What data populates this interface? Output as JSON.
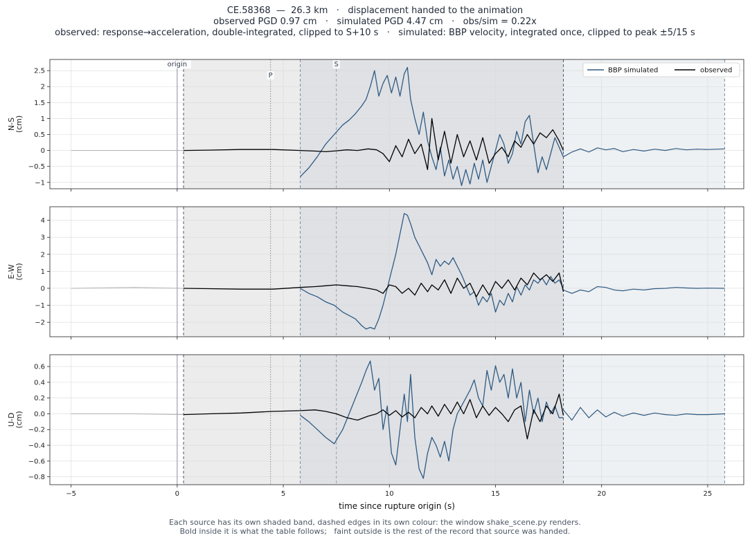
{
  "header": {
    "line1": "CE.58368  —  26.3 km   ·   displacement handed to the animation",
    "line2": "observed PGD 0.97 cm   ·   simulated PGD 4.47 cm   ·   obs/sim = 0.22x",
    "line3": "observed: response→acceleration, double-integrated, clipped to S+10 s   ·   simulated: BBP velocity, integrated once, clipped to peak ±5/15 s"
  },
  "footer": {
    "line1": "Each source has its own shaded band, dashed edges in its own colour: the window shake_scene.py renders.",
    "line2": "Bold inside it is what the table follows;   faint outside is the rest of the record that source was handed."
  },
  "colors": {
    "simulated": "#2f5a82",
    "observed": "#000000",
    "faint": "#b0b0b0",
    "obs_band": "#ececec",
    "sim_band": "#eef1f4",
    "overlap_band": "#dfe1e5"
  },
  "chart_data": {
    "type": "line",
    "xlabel": "time since rupture origin (s)",
    "xlim": [
      -6,
      26.7
    ],
    "xticks": [
      -5,
      0,
      5,
      10,
      15,
      20,
      25
    ],
    "markers": [
      {
        "label": "origin",
        "t": 0,
        "style": "solid"
      },
      {
        "label": "P",
        "t": 4.4,
        "style": "dotted"
      },
      {
        "label": "S",
        "t": 7.5,
        "style": "dashed"
      }
    ],
    "observed_window": [
      0.3,
      18.2
    ],
    "simulated_window": [
      5.8,
      25.8
    ],
    "legend": {
      "position": "top-right",
      "entries": [
        "BBP simulated",
        "observed"
      ]
    },
    "panels": [
      {
        "ylabel": "N-S\n(cm)",
        "ylim": [
          -1.2,
          2.85
        ],
        "yticks": [
          -1.0,
          -0.5,
          0.0,
          0.5,
          1.0,
          1.5,
          2.0,
          2.5
        ],
        "simulated": {
          "name": "BBP simulated",
          "x": [
            5.8,
            6.2,
            6.6,
            7.0,
            7.4,
            7.8,
            8.1,
            8.4,
            8.7,
            8.9,
            9.1,
            9.3,
            9.5,
            9.7,
            9.9,
            10.1,
            10.3,
            10.5,
            10.7,
            10.85,
            11.0,
            11.2,
            11.4,
            11.6,
            11.8,
            12.0,
            12.2,
            12.4,
            12.6,
            12.8,
            13.0,
            13.2,
            13.4,
            13.6,
            13.8,
            14.0,
            14.2,
            14.4,
            14.6,
            14.8,
            15.0,
            15.2,
            15.4,
            15.6,
            15.8,
            16.0,
            16.2,
            16.4,
            16.6,
            16.8,
            17.0,
            17.2,
            17.4,
            17.6,
            17.8,
            18.0,
            18.2
          ],
          "y": [
            -0.82,
            -0.55,
            -0.2,
            0.2,
            0.5,
            0.8,
            0.95,
            1.15,
            1.4,
            1.6,
            2.0,
            2.5,
            1.7,
            2.1,
            2.35,
            1.8,
            2.3,
            1.7,
            2.4,
            2.6,
            1.6,
            1.0,
            0.5,
            1.2,
            0.3,
            -0.2,
            -0.6,
            0.1,
            -0.8,
            -0.3,
            -0.9,
            -0.5,
            -1.1,
            -0.6,
            -1.05,
            -0.4,
            -0.9,
            -0.3,
            -1.0,
            -0.5,
            0.0,
            0.5,
            0.2,
            -0.4,
            -0.1,
            0.6,
            0.2,
            0.9,
            1.1,
            0.2,
            -0.7,
            -0.2,
            -0.6,
            -0.1,
            0.4,
            0.1,
            -0.2
          ]
        },
        "simulated_tail": {
          "x": [
            18.2,
            18.6,
            19.0,
            19.4,
            19.8,
            20.2,
            20.6,
            21.0,
            21.5,
            22.0,
            22.5,
            23.0,
            23.5,
            24.0,
            24.5,
            25.0,
            25.8
          ],
          "y": [
            -0.2,
            -0.05,
            0.05,
            -0.05,
            0.08,
            0.02,
            0.06,
            -0.04,
            0.03,
            -0.02,
            0.04,
            0.0,
            0.06,
            0.02,
            0.04,
            0.03,
            0.05
          ]
        },
        "observed": {
          "name": "observed",
          "x": [
            0.3,
            1.5,
            3.0,
            4.5,
            5.8,
            6.5,
            7.0,
            7.5,
            8.0,
            8.5,
            9.0,
            9.4,
            9.7,
            10.0,
            10.3,
            10.6,
            10.9,
            11.2,
            11.5,
            11.8,
            12.0,
            12.3,
            12.6,
            12.9,
            13.2,
            13.5,
            13.8,
            14.1,
            14.4,
            14.7,
            15.0,
            15.3,
            15.6,
            15.9,
            16.2,
            16.5,
            16.8,
            17.1,
            17.4,
            17.7,
            18.0,
            18.2
          ],
          "y": [
            0.0,
            0.01,
            0.03,
            0.03,
            0.0,
            -0.02,
            -0.04,
            -0.01,
            0.02,
            0.0,
            0.05,
            0.02,
            -0.1,
            -0.35,
            0.15,
            -0.2,
            0.35,
            -0.1,
            0.2,
            -0.6,
            1.0,
            -0.3,
            0.6,
            -0.4,
            0.5,
            -0.2,
            0.3,
            -0.3,
            0.4,
            -0.4,
            -0.1,
            0.1,
            -0.2,
            0.3,
            0.1,
            0.5,
            0.2,
            0.55,
            0.4,
            0.65,
            0.3,
            0.0
          ]
        },
        "observed_pre": {
          "x": [
            -5,
            -2,
            0.3
          ],
          "y": [
            0.0,
            0.0,
            0.0
          ]
        }
      },
      {
        "ylabel": "E-W\n(cm)",
        "ylim": [
          -2.85,
          4.8
        ],
        "yticks": [
          -2,
          -1,
          0,
          1,
          2,
          3,
          4
        ],
        "simulated": {
          "name": "BBP simulated",
          "x": [
            5.8,
            6.2,
            6.6,
            7.0,
            7.4,
            7.8,
            8.1,
            8.4,
            8.7,
            8.9,
            9.1,
            9.3,
            9.5,
            9.7,
            9.9,
            10.1,
            10.3,
            10.5,
            10.7,
            10.85,
            11.0,
            11.2,
            11.4,
            11.6,
            11.8,
            12.0,
            12.2,
            12.4,
            12.6,
            12.8,
            13.0,
            13.2,
            13.4,
            13.6,
            13.8,
            14.0,
            14.2,
            14.4,
            14.6,
            14.8,
            15.0,
            15.2,
            15.4,
            15.6,
            15.8,
            16.0,
            16.2,
            16.4,
            16.6,
            16.8,
            17.0,
            17.2,
            17.4,
            17.6,
            17.8,
            18.0,
            18.2
          ],
          "y": [
            0.0,
            -0.3,
            -0.5,
            -0.8,
            -1.0,
            -1.4,
            -1.6,
            -1.8,
            -2.2,
            -2.4,
            -2.3,
            -2.4,
            -1.8,
            -1.0,
            0.0,
            1.0,
            2.0,
            3.2,
            4.4,
            4.3,
            3.8,
            3.0,
            2.5,
            2.0,
            1.5,
            0.8,
            1.7,
            1.3,
            1.6,
            1.4,
            1.8,
            1.3,
            0.8,
            0.2,
            -0.4,
            -0.2,
            -1.0,
            -0.5,
            -0.8,
            -0.3,
            -1.4,
            -0.7,
            -1.0,
            -0.3,
            -0.8,
            0.1,
            -0.4,
            0.2,
            -0.1,
            0.5,
            0.3,
            0.6,
            0.2,
            0.7,
            0.3,
            0.5,
            0.0
          ]
        },
        "simulated_tail": {
          "x": [
            18.2,
            18.6,
            19.0,
            19.4,
            19.8,
            20.2,
            20.6,
            21.0,
            21.5,
            22.0,
            22.5,
            23.0,
            23.5,
            24.0,
            24.5,
            25.0,
            25.8
          ],
          "y": [
            -0.1,
            -0.3,
            -0.1,
            -0.2,
            0.1,
            0.05,
            -0.1,
            -0.15,
            -0.05,
            -0.1,
            -0.02,
            0.0,
            0.05,
            0.02,
            0.0,
            0.01,
            0.0
          ]
        },
        "observed": {
          "name": "observed",
          "x": [
            0.3,
            1.5,
            3.0,
            4.5,
            5.8,
            6.5,
            7.0,
            7.5,
            8.0,
            8.5,
            9.0,
            9.4,
            9.7,
            10.0,
            10.3,
            10.6,
            10.9,
            11.2,
            11.5,
            11.8,
            12.0,
            12.3,
            12.6,
            12.9,
            13.2,
            13.5,
            13.8,
            14.1,
            14.4,
            14.7,
            15.0,
            15.3,
            15.6,
            15.9,
            16.2,
            16.5,
            16.8,
            17.1,
            17.4,
            17.7,
            18.0,
            18.2
          ],
          "y": [
            0.0,
            -0.02,
            -0.05,
            -0.05,
            0.05,
            0.1,
            0.15,
            0.2,
            0.15,
            0.1,
            0.0,
            -0.1,
            -0.3,
            0.2,
            0.1,
            -0.3,
            0.0,
            -0.4,
            0.3,
            -0.2,
            0.2,
            -0.1,
            0.5,
            -0.3,
            0.6,
            0.0,
            0.3,
            -0.5,
            0.2,
            -0.4,
            0.4,
            0.0,
            0.5,
            -0.1,
            0.6,
            0.2,
            0.9,
            0.5,
            0.8,
            0.4,
            0.9,
            -0.2
          ]
        },
        "observed_pre": {
          "x": [
            -5,
            -2,
            0.3
          ],
          "y": [
            0.0,
            0.05,
            0.0
          ]
        }
      },
      {
        "ylabel": "U-D\n(cm)",
        "ylim": [
          -0.9,
          0.75
        ],
        "yticks": [
          -0.8,
          -0.6,
          -0.4,
          -0.2,
          0.0,
          0.2,
          0.4,
          0.6
        ],
        "simulated": {
          "name": "BBP simulated",
          "x": [
            5.8,
            6.2,
            6.6,
            7.0,
            7.4,
            7.8,
            8.1,
            8.4,
            8.7,
            8.9,
            9.1,
            9.3,
            9.5,
            9.7,
            9.9,
            10.1,
            10.3,
            10.5,
            10.7,
            10.85,
            11.0,
            11.2,
            11.4,
            11.6,
            11.8,
            12.0,
            12.2,
            12.4,
            12.6,
            12.8,
            13.0,
            13.2,
            13.4,
            13.6,
            13.8,
            14.0,
            14.2,
            14.4,
            14.6,
            14.8,
            15.0,
            15.2,
            15.4,
            15.6,
            15.8,
            16.0,
            16.2,
            16.4,
            16.6,
            16.8,
            17.0,
            17.2,
            17.4,
            17.6,
            17.8,
            18.0,
            18.2
          ],
          "y": [
            -0.02,
            -0.1,
            -0.2,
            -0.3,
            -0.38,
            -0.2,
            0.0,
            0.2,
            0.4,
            0.55,
            0.67,
            0.3,
            0.45,
            -0.2,
            0.1,
            -0.5,
            -0.65,
            -0.2,
            0.25,
            -0.1,
            0.5,
            -0.3,
            -0.7,
            -0.82,
            -0.5,
            -0.3,
            -0.4,
            -0.55,
            -0.35,
            -0.6,
            -0.2,
            0.0,
            0.1,
            0.2,
            0.3,
            0.43,
            0.2,
            0.1,
            0.55,
            0.3,
            0.61,
            0.4,
            0.5,
            0.2,
            0.57,
            0.2,
            0.4,
            -0.1,
            0.3,
            0.0,
            0.2,
            -0.1,
            0.15,
            0.0,
            0.1,
            -0.05,
            -0.05
          ]
        },
        "simulated_tail": {
          "x": [
            18.2,
            18.6,
            19.0,
            19.4,
            19.8,
            20.2,
            20.6,
            21.0,
            21.5,
            22.0,
            22.5,
            23.0,
            23.5,
            24.0,
            24.5,
            25.0,
            25.8
          ],
          "y": [
            0.05,
            -0.08,
            0.08,
            -0.05,
            0.05,
            -0.04,
            0.02,
            -0.03,
            0.01,
            -0.02,
            0.01,
            -0.01,
            -0.02,
            0.0,
            -0.01,
            -0.01,
            0.0
          ]
        },
        "observed": {
          "name": "observed",
          "x": [
            0.3,
            1.5,
            3.0,
            4.5,
            5.8,
            6.5,
            7.0,
            7.5,
            8.0,
            8.5,
            9.0,
            9.4,
            9.7,
            10.0,
            10.3,
            10.6,
            10.9,
            11.2,
            11.5,
            11.8,
            12.0,
            12.3,
            12.6,
            12.9,
            13.2,
            13.5,
            13.8,
            14.1,
            14.4,
            14.7,
            15.0,
            15.3,
            15.6,
            15.9,
            16.2,
            16.5,
            16.8,
            17.1,
            17.4,
            17.7,
            18.0,
            18.2
          ],
          "y": [
            -0.01,
            0.0,
            0.01,
            0.03,
            0.04,
            0.05,
            0.03,
            0.0,
            -0.05,
            -0.08,
            -0.03,
            0.0,
            0.05,
            -0.02,
            0.04,
            -0.04,
            0.02,
            -0.05,
            0.08,
            0.0,
            0.1,
            -0.03,
            0.12,
            0.0,
            0.15,
            0.0,
            0.18,
            -0.05,
            0.1,
            -0.02,
            0.08,
            0.0,
            -0.1,
            0.05,
            0.1,
            -0.32,
            0.05,
            -0.1,
            0.1,
            0.0,
            0.25,
            -0.02
          ]
        },
        "observed_pre": {
          "x": [
            -5,
            -2,
            0.3
          ],
          "y": [
            0.0,
            0.0,
            -0.01
          ]
        }
      }
    ]
  }
}
